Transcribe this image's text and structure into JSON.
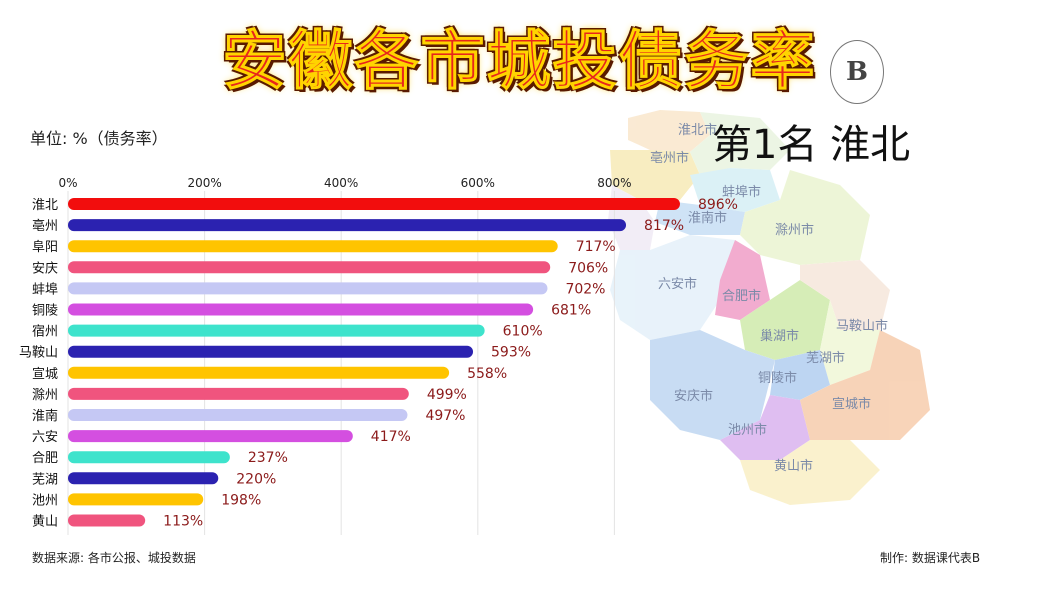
{
  "title": "安徽各市城投债务率",
  "unit_label": "单位: %（债务率）",
  "rank_heading": "第1名 淮北",
  "source_note": "数据来源: 各市公报、城投数据",
  "credit_note": "制作:  数据课代表B",
  "logo_letter": "B",
  "map_labels": [
    "淮北市",
    "亳州市",
    "蚌埠市",
    "淮南市",
    "滁州市",
    "六安市",
    "合肥市",
    "马鞍山市",
    "巢湖市",
    "芜湖市",
    "安庆市",
    "铜陵市",
    "宣城市",
    "池州市",
    "黄山市"
  ],
  "chart_data": {
    "type": "bar",
    "orientation": "horizontal",
    "categories": [
      "淮北",
      "亳州",
      "阜阳",
      "安庆",
      "蚌埠",
      "铜陵",
      "宿州",
      "马鞍山",
      "宣城",
      "滁州",
      "淮南",
      "六安",
      "合肥",
      "芜湖",
      "池州",
      "黄山"
    ],
    "values": [
      896,
      817,
      717,
      706,
      702,
      681,
      610,
      593,
      558,
      499,
      497,
      417,
      237,
      220,
      198,
      113
    ],
    "value_labels": [
      "896%",
      "817%",
      "717%",
      "706%",
      "702%",
      "681%",
      "610%",
      "593%",
      "558%",
      "499%",
      "497%",
      "417%",
      "237%",
      "220%",
      "198%",
      "113%"
    ],
    "colors": [
      "#f20d0d",
      "#2b22b0",
      "#ffc400",
      "#f0547e",
      "#c5c8f4",
      "#d44fe0",
      "#3ee3cc",
      "#2b22b0",
      "#ffc400",
      "#f0547e",
      "#c5c8f4",
      "#d44fe0",
      "#3ee3cc",
      "#2b22b0",
      "#ffc400",
      "#f0547e"
    ],
    "xticks": [
      0,
      200,
      400,
      600,
      800
    ],
    "xtick_labels": [
      "0%",
      "200%",
      "400%",
      "600%",
      "800%"
    ],
    "xlim": [
      0,
      1000
    ],
    "grid": true,
    "value_label_color": "#8b1a1a"
  }
}
